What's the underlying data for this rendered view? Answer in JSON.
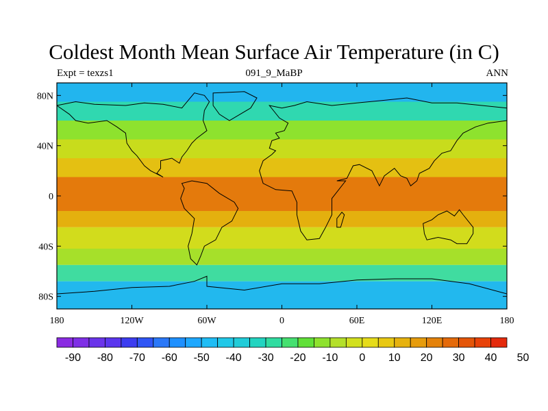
{
  "title": "Coldest Month Mean Surface Air Temperature (in C)",
  "subtitle_left": "Expt = texzs1",
  "subtitle_center": "091_9_MaBP",
  "subtitle_right": "ANN",
  "lat_ticks": [
    {
      "value": 80,
      "label": "80N"
    },
    {
      "value": 40,
      "label": "40N"
    },
    {
      "value": 0,
      "label": "0"
    },
    {
      "value": -40,
      "label": "40S"
    },
    {
      "value": -80,
      "label": "80S"
    }
  ],
  "lon_ticks": [
    {
      "value": -180,
      "label": "180"
    },
    {
      "value": -120,
      "label": "120W"
    },
    {
      "value": -60,
      "label": "60W"
    },
    {
      "value": 0,
      "label": "0"
    },
    {
      "value": 60,
      "label": "60E"
    },
    {
      "value": 120,
      "label": "120E"
    },
    {
      "value": 180,
      "label": "180"
    }
  ],
  "extent": {
    "lon": [
      -180,
      180
    ],
    "lat": [
      -90,
      90
    ]
  },
  "colorbar": {
    "colors": [
      "#8a2be2",
      "#7f2fe6",
      "#6a34ea",
      "#5a36ee",
      "#3c3cf0",
      "#2f55f5",
      "#2a78f8",
      "#1e90ff",
      "#1ea8ff",
      "#1fbdf5",
      "#20c8e8",
      "#20ccd8",
      "#22d4c0",
      "#30dca0",
      "#45e070",
      "#60e038",
      "#8ee22e",
      "#b4e02a",
      "#d2e01e",
      "#e6dc1a",
      "#e8c812",
      "#e6b20e",
      "#e69c0c",
      "#e4820a",
      "#e46a0a",
      "#e45508",
      "#e84208",
      "#e42a0c"
    ],
    "labels": [
      "-90",
      "-80",
      "-70",
      "-60",
      "-50",
      "-40",
      "-30",
      "-20",
      "-10",
      "0",
      "10",
      "20",
      "30",
      "40",
      "50"
    ]
  },
  "temperature_bands": [
    {
      "lat": [
        75,
        90
      ],
      "color": "#22b5ee"
    },
    {
      "lat": [
        60,
        75
      ],
      "color": "#30d8b0"
    },
    {
      "lat": [
        45,
        60
      ],
      "color": "#8ee22e"
    },
    {
      "lat": [
        30,
        45
      ],
      "color": "#c8dc1c"
    },
    {
      "lat": [
        15,
        30
      ],
      "color": "#e4c012"
    },
    {
      "lat": [
        -12,
        15
      ],
      "color": "#e47a0c"
    },
    {
      "lat": [
        -25,
        -12
      ],
      "color": "#e4b00e"
    },
    {
      "lat": [
        -42,
        -25
      ],
      "color": "#d2dc1c"
    },
    {
      "lat": [
        -55,
        -42
      ],
      "color": "#a6e02a"
    },
    {
      "lat": [
        -68,
        -55
      ],
      "color": "#40dca0"
    },
    {
      "lat": [
        -90,
        -68
      ],
      "color": "#22b8ee"
    }
  ],
  "continents": [
    {
      "name": "north-america",
      "points": [
        [
          -180,
          72
        ],
        [
          -165,
          75
        ],
        [
          -150,
          73
        ],
        [
          -125,
          72
        ],
        [
          -110,
          74
        ],
        [
          -95,
          73
        ],
        [
          -80,
          70
        ],
        [
          -75,
          76
        ],
        [
          -70,
          82
        ],
        [
          -62,
          80
        ],
        [
          -58,
          75
        ],
        [
          -62,
          68
        ],
        [
          -63,
          60
        ],
        [
          -60,
          52
        ],
        [
          -68,
          46
        ],
        [
          -72,
          42
        ],
        [
          -76,
          36
        ],
        [
          -80,
          31
        ],
        [
          -82,
          26
        ],
        [
          -88,
          30
        ],
        [
          -97,
          28
        ],
        [
          -97,
          22
        ],
        [
          -100,
          18
        ],
        [
          -95,
          15
        ],
        [
          -105,
          20
        ],
        [
          -110,
          24
        ],
        [
          -116,
          32
        ],
        [
          -120,
          36
        ],
        [
          -124,
          42
        ],
        [
          -125,
          50
        ],
        [
          -132,
          55
        ],
        [
          -140,
          60
        ],
        [
          -155,
          58
        ],
        [
          -165,
          60
        ],
        [
          -170,
          65
        ]
      ]
    },
    {
      "name": "south-america",
      "points": [
        [
          -80,
          10
        ],
        [
          -72,
          12
        ],
        [
          -60,
          10
        ],
        [
          -50,
          2
        ],
        [
          -38,
          -5
        ],
        [
          -35,
          -10
        ],
        [
          -40,
          -20
        ],
        [
          -48,
          -25
        ],
        [
          -53,
          -35
        ],
        [
          -62,
          -40
        ],
        [
          -65,
          -48
        ],
        [
          -68,
          -55
        ],
        [
          -73,
          -50
        ],
        [
          -75,
          -40
        ],
        [
          -72,
          -30
        ],
        [
          -70,
          -18
        ],
        [
          -78,
          -10
        ],
        [
          -81,
          -2
        ],
        [
          -78,
          6
        ]
      ]
    },
    {
      "name": "eurasia-africa",
      "points": [
        [
          -10,
          72
        ],
        [
          0,
          70
        ],
        [
          10,
          72
        ],
        [
          20,
          75
        ],
        [
          40,
          72
        ],
        [
          60,
          74
        ],
        [
          80,
          76
        ],
        [
          100,
          78
        ],
        [
          120,
          74
        ],
        [
          140,
          74
        ],
        [
          160,
          72
        ],
        [
          180,
          70
        ],
        [
          180,
          60
        ],
        [
          165,
          58
        ],
        [
          155,
          55
        ],
        [
          145,
          50
        ],
        [
          140,
          44
        ],
        [
          135,
          36
        ],
        [
          128,
          34
        ],
        [
          122,
          28
        ],
        [
          118,
          22
        ],
        [
          110,
          18
        ],
        [
          108,
          12
        ],
        [
          103,
          8
        ],
        [
          100,
          14
        ],
        [
          95,
          16
        ],
        [
          90,
          22
        ],
        [
          82,
          16
        ],
        [
          78,
          8
        ],
        [
          72,
          20
        ],
        [
          62,
          25
        ],
        [
          57,
          24
        ],
        [
          52,
          14
        ],
        [
          44,
          12
        ],
        [
          51,
          12
        ],
        [
          40,
          -2
        ],
        [
          40,
          -15
        ],
        [
          35,
          -25
        ],
        [
          30,
          -34
        ],
        [
          20,
          -35
        ],
        [
          15,
          -28
        ],
        [
          12,
          -15
        ],
        [
          12,
          -5
        ],
        [
          8,
          4
        ],
        [
          -5,
          5
        ],
        [
          -15,
          10
        ],
        [
          -18,
          20
        ],
        [
          -15,
          28
        ],
        [
          -8,
          33
        ],
        [
          -5,
          36
        ],
        [
          -10,
          38
        ],
        [
          -8,
          44
        ],
        [
          -2,
          46
        ],
        [
          -5,
          50
        ],
        [
          2,
          52
        ],
        [
          5,
          58
        ],
        [
          -2,
          62
        ]
      ]
    },
    {
      "name": "australia",
      "points": [
        [
          113,
          -22
        ],
        [
          114,
          -30
        ],
        [
          116,
          -35
        ],
        [
          125,
          -33
        ],
        [
          135,
          -35
        ],
        [
          140,
          -38
        ],
        [
          148,
          -38
        ],
        [
          153,
          -30
        ],
        [
          153,
          -25
        ],
        [
          145,
          -15
        ],
        [
          142,
          -11
        ],
        [
          138,
          -16
        ],
        [
          132,
          -12
        ],
        [
          125,
          -15
        ],
        [
          120,
          -19
        ]
      ]
    },
    {
      "name": "antarctica",
      "points": [
        [
          -180,
          -90
        ],
        [
          180,
          -90
        ],
        [
          180,
          -78
        ],
        [
          150,
          -70
        ],
        [
          120,
          -66
        ],
        [
          90,
          -66
        ],
        [
          60,
          -67
        ],
        [
          30,
          -70
        ],
        [
          0,
          -70
        ],
        [
          -30,
          -75
        ],
        [
          -60,
          -72
        ],
        [
          -60,
          -64
        ],
        [
          -70,
          -68
        ],
        [
          -90,
          -72
        ],
        [
          -120,
          -73
        ],
        [
          -150,
          -76
        ],
        [
          -180,
          -78
        ]
      ]
    },
    {
      "name": "madagascar",
      "points": [
        [
          44,
          -25
        ],
        [
          47,
          -25
        ],
        [
          50,
          -15
        ],
        [
          48,
          -13
        ],
        [
          44,
          -18
        ]
      ]
    },
    {
      "name": "greenland",
      "points": [
        [
          -55,
          82
        ],
        [
          -30,
          83
        ],
        [
          -20,
          78
        ],
        [
          -25,
          70
        ],
        [
          -42,
          60
        ],
        [
          -50,
          65
        ],
        [
          -55,
          72
        ]
      ]
    }
  ]
}
